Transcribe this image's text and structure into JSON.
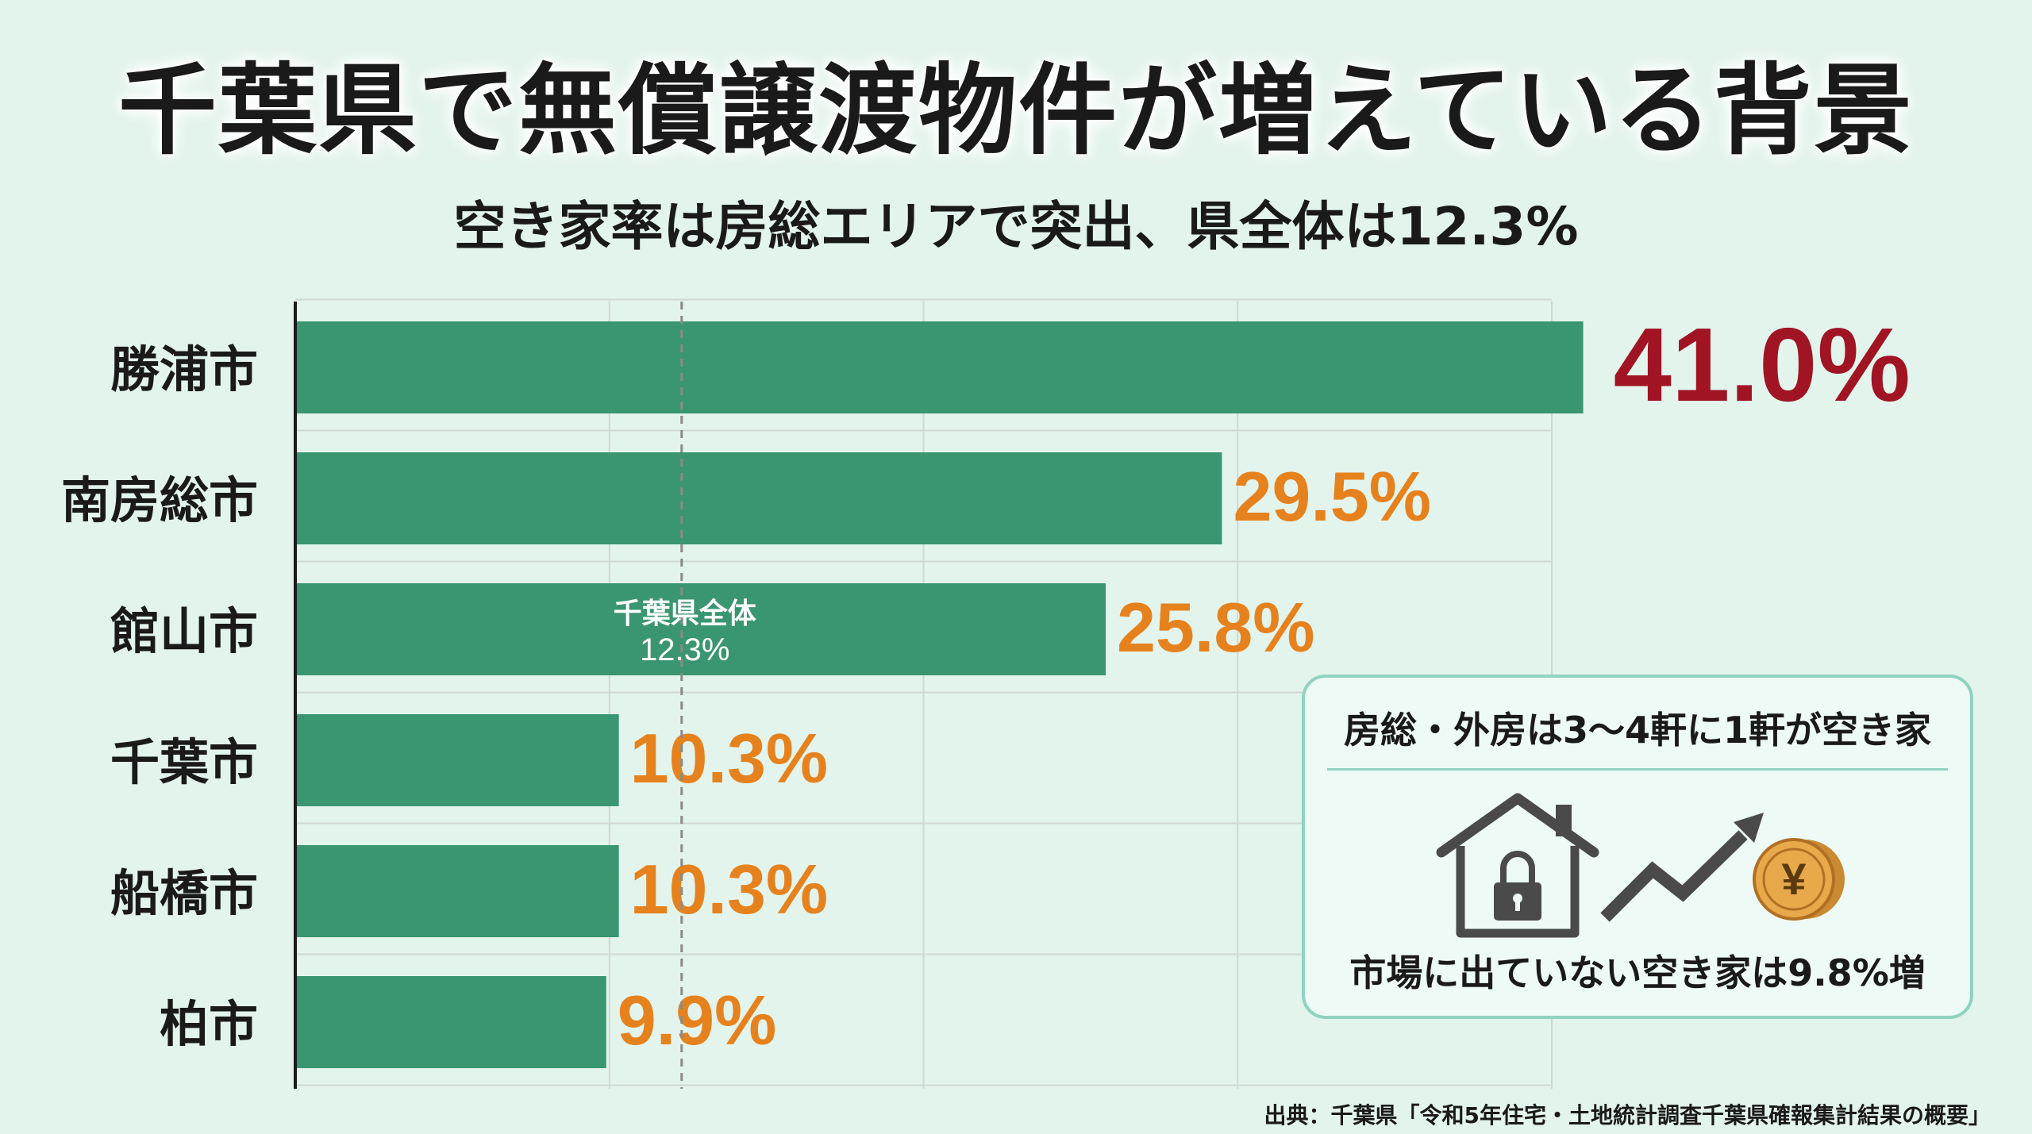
{
  "title": "千葉県で無償譲渡物件が増えている背景",
  "subtitle": "空き家率は房総エリアで突出、県全体は12.3%",
  "chart_data": {
    "type": "bar",
    "orientation": "horizontal",
    "categories": [
      "勝浦市",
      "南房総市",
      "館山市",
      "千葉市",
      "船橋市",
      "柏市"
    ],
    "values": [
      41.0,
      29.5,
      25.8,
      10.3,
      10.3,
      9.9
    ],
    "value_labels": [
      "41.0%",
      "29.5%",
      "25.8%",
      "10.3%",
      "10.3%",
      "9.9%"
    ],
    "xlim": [
      0,
      40
    ],
    "grid": true,
    "reference_line": {
      "value": 12.3,
      "label_line1": "千葉県全体",
      "label_line2": "12.3%"
    },
    "colors": {
      "bar": "#3a9670",
      "highlight_label": "#a01424",
      "label": "#e6821e"
    }
  },
  "callout": {
    "heading": "房総・外房は3〜4軒に1軒が空き家",
    "footer": "市場に出ていない空き家は9.8%増",
    "icons": [
      "house-lock-icon",
      "rising-trend-arrow-icon",
      "yen-coin-icon"
    ]
  },
  "source": "出典：千葉県「令和5年住宅・土地統計調査千葉県確報集計結果の概要」"
}
